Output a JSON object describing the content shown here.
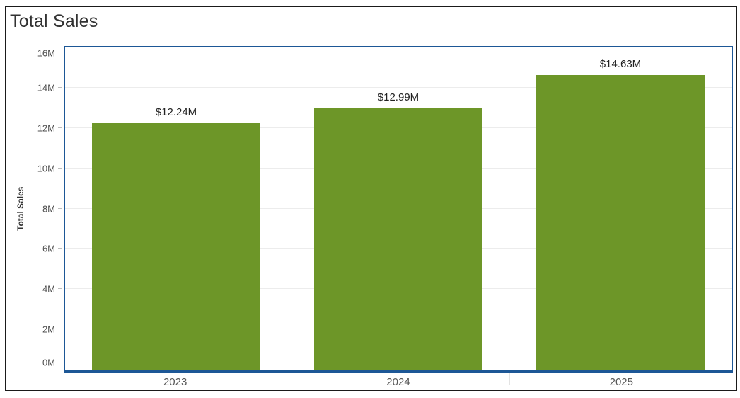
{
  "header": {
    "title": "Total Sales"
  },
  "chart_data": {
    "type": "bar",
    "title": "Total Sales",
    "categories": [
      "2023",
      "2024",
      "2025"
    ],
    "values": [
      12240000,
      12990000,
      14630000
    ],
    "bar_labels": [
      "$12.24M",
      "$12.99M",
      "$14.63M"
    ],
    "xlabel": "",
    "ylabel": "Total Sales",
    "ylim": [
      0,
      16000000
    ],
    "yticks": [
      {
        "value": 0,
        "label": "0M"
      },
      {
        "value": 2000000,
        "label": "2M"
      },
      {
        "value": 4000000,
        "label": "4M"
      },
      {
        "value": 6000000,
        "label": "6M"
      },
      {
        "value": 8000000,
        "label": "8M"
      },
      {
        "value": 10000000,
        "label": "10M"
      },
      {
        "value": 12000000,
        "label": "12M"
      },
      {
        "value": 14000000,
        "label": "14M"
      },
      {
        "value": 16000000,
        "label": "16M"
      }
    ],
    "grid": "horizontal-light",
    "legend": "none",
    "colors": {
      "bar": "#6d9628",
      "axis_frame": "#1d5796",
      "outer_border": "#1a1a1a",
      "gridline": "#ececec",
      "tick_mark": "#bdbdbd",
      "tick_label": "#4f4f4f",
      "bar_label": "#222222",
      "title": "#323232"
    }
  }
}
